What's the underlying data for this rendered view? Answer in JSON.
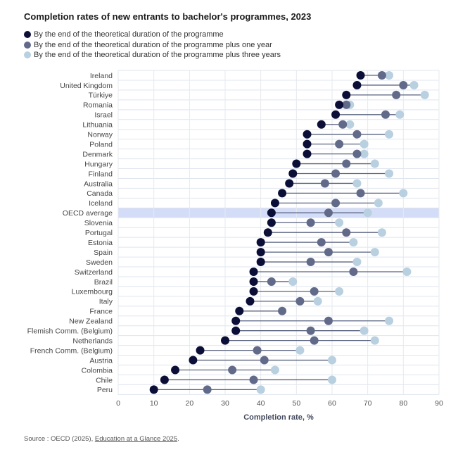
{
  "chart_data": {
    "type": "dot-range",
    "title": "Completion rates of new entrants to bachelor's programmes, 2023",
    "xlabel": "Completion rate, %",
    "ylabel": "",
    "xlim": [
      0,
      90
    ],
    "xticks": [
      0,
      10,
      20,
      30,
      40,
      50,
      60,
      70,
      80,
      90
    ],
    "legend_position": "top-left",
    "highlight": "OECD average",
    "categories": [
      "Ireland",
      "United Kingdom",
      "Türkiye",
      "Romania",
      "Israel",
      "Lithuania",
      "Norway",
      "Poland",
      "Denmark",
      "Hungary",
      "Finland",
      "Australia",
      "Canada",
      "Iceland",
      "OECD average",
      "Slovenia",
      "Portugal",
      "Estonia",
      "Spain",
      "Sweden",
      "Switzerland",
      "Brazil",
      "Luxembourg",
      "Italy",
      "France",
      "New Zealand",
      "Flemish Comm. (Belgium)",
      "Netherlands",
      "French Comm. (Belgium)",
      "Austria",
      "Colombia",
      "Chile",
      "Peru"
    ],
    "series": [
      {
        "name": "By the end of the theoretical duration of the programme",
        "color": "#0b0e36",
        "values": [
          68,
          67,
          64,
          62,
          61,
          57,
          53,
          53,
          53,
          50,
          49,
          48,
          46,
          44,
          43,
          43,
          42,
          40,
          40,
          40,
          38,
          38,
          38,
          37,
          34,
          33,
          33,
          30,
          23,
          21,
          16,
          13,
          10
        ]
      },
      {
        "name": "By the end of the theoretical duration of the programme plus one year",
        "color": "#626a8a",
        "values": [
          74,
          80,
          78,
          64,
          75,
          63,
          67,
          62,
          67,
          64,
          61,
          58,
          68,
          61,
          59,
          54,
          64,
          57,
          59,
          54,
          66,
          43,
          55,
          51,
          46,
          59,
          54,
          55,
          39,
          41,
          32,
          38,
          25
        ]
      },
      {
        "name": "By the end of the theoretical duration of the programme plus three years",
        "color": "#b8d0e0",
        "values": [
          76,
          83,
          86,
          65,
          79,
          65,
          76,
          69,
          69,
          72,
          76,
          67,
          80,
          73,
          70,
          62,
          74,
          66,
          72,
          67,
          81,
          49,
          62,
          56,
          null,
          76,
          69,
          72,
          51,
          60,
          44,
          60,
          40
        ]
      }
    ],
    "source": {
      "prefix": "Source : OECD (2025), ",
      "link_text": "Education at a Glance 2025",
      "suffix": "."
    }
  }
}
